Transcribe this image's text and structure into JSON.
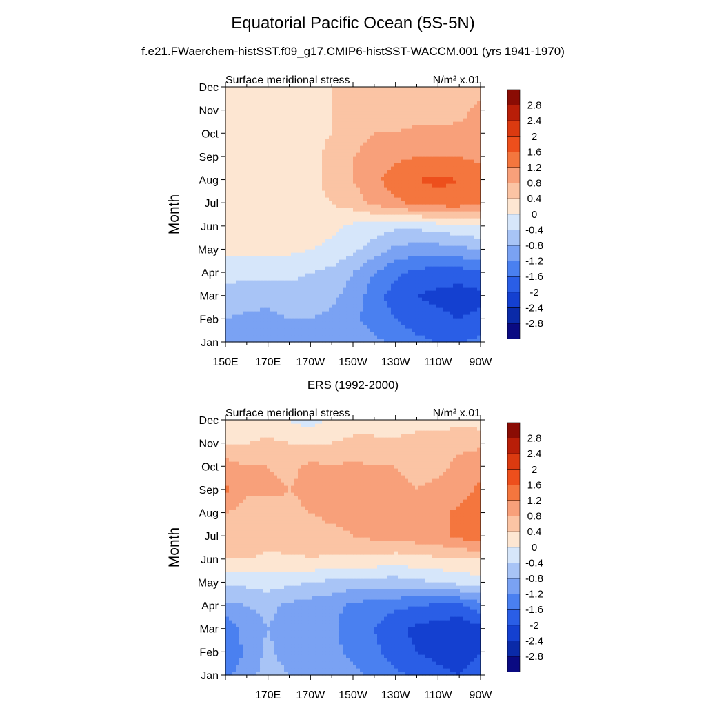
{
  "figure": {
    "title": "Equatorial Pacific Ocean (5S-5N)",
    "subtitle": "f.e21.FWaerchem-histSST.f09_g17.CMIP6-histSST-WACCM.001 (yrs 1941-1970)"
  },
  "colors": {
    "levels": [
      "#0a0a82",
      "#0a2aa8",
      "#1440d0",
      "#2a5ee6",
      "#4a80f0",
      "#7aa2f3",
      "#a8c4f6",
      "#d6e6fa",
      "#fde6d2",
      "#fbc4a4",
      "#f8a07a",
      "#f4763e",
      "#ed4f1c",
      "#db3a10",
      "#b81e08",
      "#8a0c04"
    ]
  },
  "chart_data": [
    {
      "type": "heatmap",
      "panel_title": "",
      "left_label": "Surface meridional stress",
      "right_label": "N/m² x.01",
      "ylabel": "Month",
      "months": [
        "Jan",
        "Feb",
        "Mar",
        "Apr",
        "May",
        "Jun",
        "Jul",
        "Aug",
        "Sep",
        "Oct",
        "Nov",
        "Dec"
      ],
      "xticks": [
        "150E",
        "170E",
        "170W",
        "150W",
        "130W",
        "110W",
        "90W"
      ],
      "x_range": [
        150,
        270
      ],
      "colorbar_labels": [
        "2.8",
        "2.4",
        "2",
        "1.6",
        "1.2",
        "0.8",
        "0.4",
        "0",
        "-0.4",
        "-0.8",
        "-1.2",
        "-1.6",
        "-2",
        "-2.4",
        "-2.8"
      ],
      "x": [
        150,
        160,
        170,
        180,
        190,
        200,
        210,
        220,
        230,
        240,
        250,
        260,
        270
      ],
      "values": [
        [
          -0.9,
          -0.9,
          -0.9,
          -0.9,
          -0.9,
          -0.8,
          -0.9,
          -1.1,
          -1.3,
          -1.5,
          -1.6,
          -1.6,
          -1.5
        ],
        [
          -0.8,
          -0.9,
          -0.9,
          -0.8,
          -0.8,
          -0.9,
          -1.1,
          -1.4,
          -1.6,
          -1.8,
          -1.9,
          -2.0,
          -1.9
        ],
        [
          -0.5,
          -0.6,
          -0.7,
          -0.6,
          -0.6,
          -0.7,
          -1.0,
          -1.4,
          -1.8,
          -2.0,
          -2.1,
          -2.2,
          -2.1
        ],
        [
          -0.3,
          -0.3,
          -0.3,
          -0.3,
          -0.4,
          -0.5,
          -0.8,
          -1.2,
          -1.5,
          -1.7,
          -1.8,
          -1.8,
          -1.7
        ],
        [
          0.1,
          0.1,
          0.1,
          0.1,
          0.0,
          -0.1,
          -0.3,
          -0.6,
          -0.9,
          -1.0,
          -1.0,
          -0.9,
          -0.8
        ],
        [
          0.2,
          0.2,
          0.2,
          0.2,
          0.2,
          0.1,
          -0.1,
          -0.2,
          -0.3,
          -0.3,
          -0.2,
          -0.1,
          0.0
        ],
        [
          0.2,
          0.2,
          0.2,
          0.2,
          0.3,
          0.4,
          0.6,
          0.9,
          1.1,
          1.3,
          1.4,
          1.4,
          1.3
        ],
        [
          0.2,
          0.2,
          0.2,
          0.2,
          0.3,
          0.5,
          0.8,
          1.1,
          1.4,
          1.6,
          1.7,
          1.6,
          1.4
        ],
        [
          0.3,
          0.3,
          0.3,
          0.3,
          0.3,
          0.5,
          0.8,
          1.0,
          1.1,
          1.2,
          1.2,
          1.2,
          1.1
        ],
        [
          0.3,
          0.3,
          0.3,
          0.3,
          0.3,
          0.4,
          0.6,
          0.8,
          0.8,
          0.9,
          0.9,
          0.9,
          1.0
        ],
        [
          0.2,
          0.2,
          0.2,
          0.2,
          0.3,
          0.4,
          0.5,
          0.6,
          0.6,
          0.6,
          0.6,
          0.7,
          0.9
        ],
        [
          0.0,
          0.1,
          0.2,
          0.2,
          0.3,
          0.4,
          0.5,
          0.6,
          0.5,
          0.4,
          0.4,
          0.5,
          0.7
        ]
      ]
    },
    {
      "type": "heatmap",
      "panel_title": "ERS (1992-2000)",
      "left_label": "Surface meridional stress",
      "right_label": "N/m² x.01",
      "ylabel": "Month",
      "months": [
        "Jan",
        "Feb",
        "Mar",
        "Apr",
        "May",
        "Jun",
        "Jul",
        "Aug",
        "Sep",
        "Oct",
        "Nov",
        "Dec"
      ],
      "xticks": [
        "",
        "170E",
        "170W",
        "150W",
        "130W",
        "110W",
        "90W"
      ],
      "x_range": [
        150,
        270
      ],
      "colorbar_labels": [
        "2.8",
        "2.4",
        "2",
        "1.6",
        "1.2",
        "0.8",
        "0.4",
        "0",
        "-0.4",
        "-0.8",
        "-1.2",
        "-1.6",
        "-2",
        "-2.4",
        "-2.8"
      ],
      "x": [
        150,
        160,
        170,
        180,
        190,
        200,
        210,
        220,
        230,
        240,
        250,
        260,
        270
      ],
      "values": [
        [
          -1.3,
          -1.0,
          -0.6,
          -0.8,
          -0.9,
          -1.0,
          -1.1,
          -1.3,
          -1.5,
          -1.7,
          -1.9,
          -2.0,
          -1.8
        ],
        [
          -1.6,
          -1.1,
          -0.7,
          -1.0,
          -1.1,
          -1.1,
          -1.3,
          -1.5,
          -1.8,
          -2.0,
          -2.1,
          -2.2,
          -2.0
        ],
        [
          -1.5,
          -1.0,
          -0.8,
          -1.0,
          -1.1,
          -1.1,
          -1.4,
          -1.6,
          -1.9,
          -2.1,
          -2.2,
          -2.3,
          -2.1
        ],
        [
          -0.9,
          -0.8,
          -0.7,
          -0.9,
          -1.0,
          -1.1,
          -1.3,
          -1.4,
          -1.5,
          -1.6,
          -1.7,
          -1.7,
          -1.4
        ],
        [
          -0.3,
          -0.3,
          -0.2,
          -0.3,
          -0.4,
          -0.5,
          -0.6,
          -0.6,
          -0.6,
          -0.5,
          -0.4,
          -0.3,
          -0.2
        ],
        [
          0.4,
          0.4,
          0.3,
          0.3,
          0.4,
          0.3,
          0.3,
          0.3,
          0.2,
          0.3,
          0.3,
          0.4,
          0.4
        ],
        [
          0.6,
          0.7,
          0.6,
          0.7,
          0.6,
          0.7,
          0.8,
          0.9,
          0.9,
          1.0,
          1.1,
          1.3,
          1.4
        ],
        [
          0.8,
          0.6,
          0.6,
          0.7,
          0.8,
          0.9,
          0.9,
          1.0,
          0.9,
          1.0,
          1.1,
          1.3,
          1.5
        ],
        [
          1.3,
          0.9,
          0.9,
          0.8,
          0.9,
          0.8,
          0.9,
          0.9,
          0.9,
          0.8,
          0.9,
          1.0,
          1.3
        ],
        [
          1.0,
          0.8,
          0.8,
          0.7,
          0.9,
          0.8,
          0.9,
          0.8,
          0.8,
          0.7,
          0.7,
          0.9,
          1.1
        ],
        [
          0.4,
          0.4,
          0.5,
          0.4,
          0.4,
          0.4,
          0.5,
          0.5,
          0.5,
          0.6,
          0.6,
          0.7,
          0.7
        ],
        [
          0.1,
          0.2,
          0.1,
          0.0,
          -0.2,
          0.1,
          0.2,
          0.2,
          0.1,
          0.2,
          0.2,
          0.3,
          0.2
        ]
      ]
    }
  ]
}
